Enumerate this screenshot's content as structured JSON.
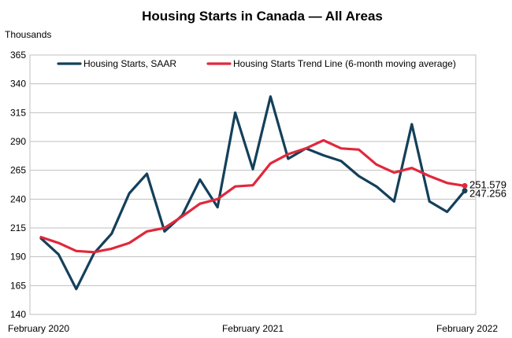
{
  "chart_data": {
    "type": "line",
    "title": "Housing Starts in Canada — All Areas",
    "ylabel": "Thousands",
    "xlabel": "",
    "ylim": [
      140,
      365
    ],
    "yticks": [
      140,
      165,
      190,
      215,
      240,
      265,
      290,
      315,
      340,
      365
    ],
    "x": [
      "2020-02",
      "2020-03",
      "2020-04",
      "2020-05",
      "2020-06",
      "2020-07",
      "2020-08",
      "2020-09",
      "2020-10",
      "2020-11",
      "2020-12",
      "2021-01",
      "2021-02",
      "2021-03",
      "2021-04",
      "2021-05",
      "2021-06",
      "2021-07",
      "2021-08",
      "2021-09",
      "2021-10",
      "2021-11",
      "2021-12",
      "2022-01",
      "2022-02"
    ],
    "x_tick_labels": [
      "February 2020",
      "February 2021",
      "February 2022"
    ],
    "legend_placement": "top",
    "grid": "horizontal",
    "series": [
      {
        "name": "Housing Starts, SAAR",
        "color": "#14405a",
        "values": [
          206,
          192,
          162,
          193,
          210,
          245,
          262,
          212,
          226,
          257,
          233,
          315,
          266,
          329,
          275,
          284,
          278,
          273,
          260,
          251,
          238,
          305,
          238,
          229,
          247.256
        ]
      },
      {
        "name": "Housing Starts Trend Line (6-month moving average)",
        "color": "#e0283c",
        "values": [
          207,
          202,
          195,
          194,
          197,
          202,
          212,
          215,
          225,
          236,
          240,
          251,
          252,
          271,
          279,
          284,
          291,
          284,
          283,
          270,
          263,
          267,
          260,
          254,
          251.579
        ]
      }
    ],
    "end_labels": [
      "251.579",
      "247.256"
    ]
  }
}
